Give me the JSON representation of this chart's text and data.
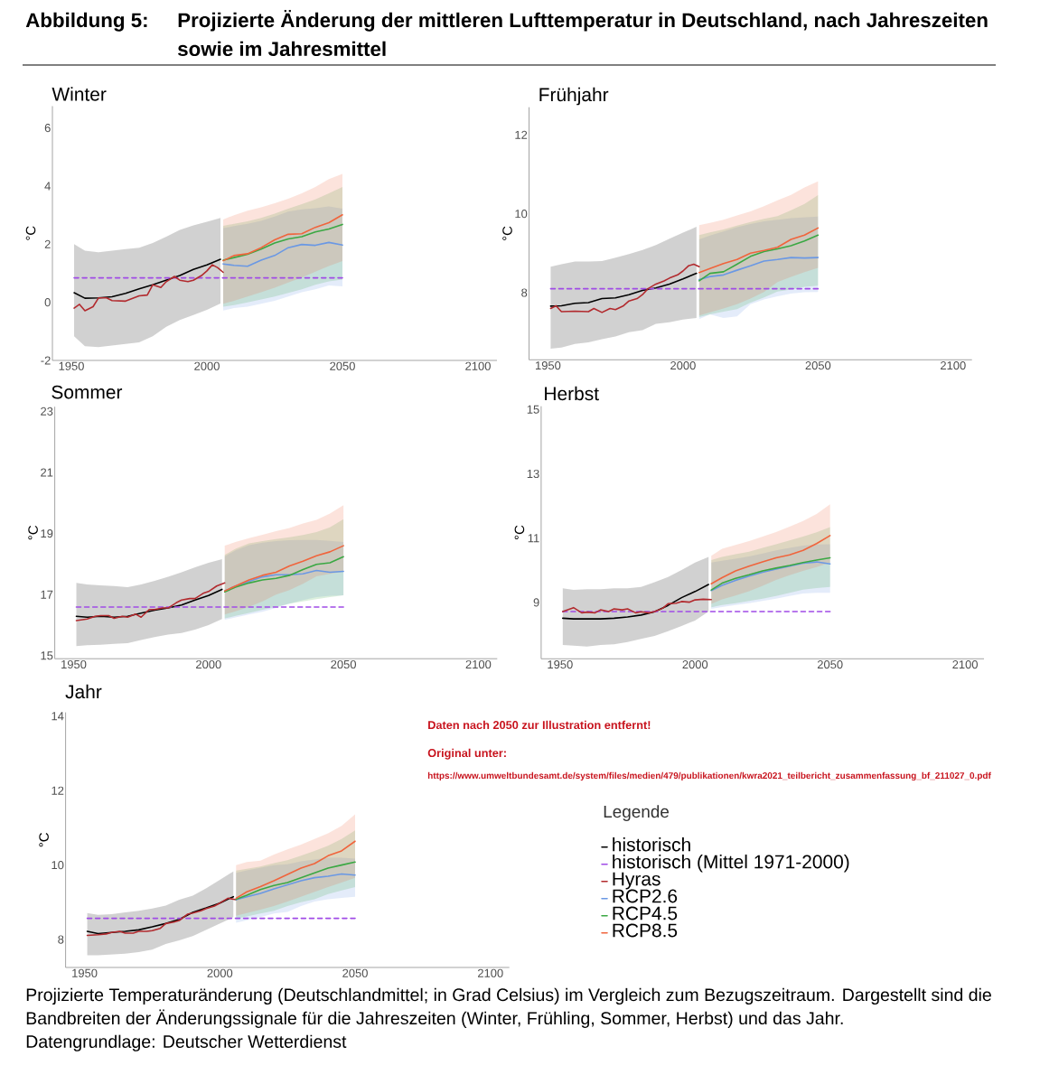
{
  "chart_data": [
    {
      "type": "line",
      "title": "Winter",
      "ylabel": "°C",
      "annotations": [
        "Abbildung 5:",
        "Projizierte Änderung der mittleren Lufttemperatur in Deutschland, nach Jahreszeiten sowie im Jahresmittel"
      ],
      "xlim": [
        1943,
        2107
      ],
      "xticks": [
        1950,
        2000,
        2050,
        2100
      ],
      "ylim": [
        -2,
        6.75
      ],
      "yticks": [
        -2,
        0,
        2,
        4,
        6
      ],
      "series": [
        {
          "color": "#000000",
          "x": [
            1951,
            1955,
            1960,
            1965,
            1970,
            1975,
            1980,
            1985,
            1990,
            1995,
            2000,
            2005
          ],
          "values": [
            0.33,
            0.14,
            0.15,
            0.19,
            0.31,
            0.46,
            0.6,
            0.76,
            0.92,
            1.13,
            1.29,
            1.48
          ],
          "lower": [
            -1.17,
            -1.51,
            -1.54,
            -1.49,
            -1.43,
            -1.38,
            -1.17,
            -0.84,
            -0.61,
            -0.44,
            -0.26,
            -0.04
          ],
          "upper": [
            2.0,
            1.78,
            1.72,
            1.78,
            1.83,
            1.88,
            2.04,
            2.26,
            2.49,
            2.65,
            2.77,
            2.9
          ]
        },
        {
          "color": "#a04be6",
          "line_style": "dashed",
          "x": [
            1951,
            2050
          ],
          "values": [
            0.84,
            0.84
          ]
        },
        {
          "color": "#b22a2e",
          "x": [
            1951,
            1953,
            1955,
            1958,
            1960,
            1963,
            1965,
            1970,
            1975,
            1978,
            1980,
            1983,
            1985,
            1988,
            1990,
            1993,
            1995,
            1998,
            2000,
            2002,
            2004,
            2006
          ],
          "values": [
            -0.2,
            -0.07,
            -0.29,
            -0.15,
            0.15,
            0.15,
            0.06,
            0.04,
            0.22,
            0.25,
            0.6,
            0.51,
            0.71,
            0.89,
            0.76,
            0.71,
            0.76,
            0.92,
            1.08,
            1.29,
            1.19,
            1.03
          ]
        },
        {
          "color": "#6a98e4",
          "x": [
            2006,
            2010,
            2015,
            2020,
            2025,
            2030,
            2035,
            2040,
            2045,
            2050
          ],
          "values": [
            1.32,
            1.27,
            1.24,
            1.45,
            1.61,
            1.88,
            1.99,
            1.96,
            2.06,
            1.97
          ],
          "lower": [
            -0.28,
            -0.2,
            -0.15,
            -0.05,
            0.05,
            0.2,
            0.35,
            0.45,
            0.58,
            0.55
          ],
          "upper": [
            2.55,
            2.62,
            2.7,
            2.8,
            2.95,
            3.12,
            3.2,
            3.24,
            3.3,
            3.22
          ]
        },
        {
          "color": "#3aa843",
          "x": [
            2006,
            2010,
            2015,
            2020,
            2025,
            2030,
            2035,
            2040,
            2045,
            2050
          ],
          "values": [
            1.45,
            1.54,
            1.65,
            1.83,
            2.04,
            2.18,
            2.26,
            2.42,
            2.52,
            2.68
          ],
          "lower": [
            -0.15,
            -0.1,
            0.0,
            0.1,
            0.2,
            0.32,
            0.45,
            0.6,
            0.72,
            0.78
          ],
          "upper": [
            2.63,
            2.7,
            2.79,
            2.9,
            3.05,
            3.22,
            3.38,
            3.54,
            3.75,
            3.97
          ]
        },
        {
          "color": "#f0643c",
          "x": [
            2006,
            2010,
            2015,
            2020,
            2025,
            2030,
            2035,
            2040,
            2045,
            2050
          ],
          "values": [
            1.43,
            1.61,
            1.67,
            1.88,
            2.15,
            2.34,
            2.36,
            2.58,
            2.74,
            3.01
          ],
          "lower": [
            -0.05,
            0.05,
            0.2,
            0.35,
            0.5,
            0.68,
            0.85,
            1.05,
            1.25,
            1.42
          ],
          "upper": [
            2.85,
            3.0,
            3.15,
            3.27,
            3.41,
            3.56,
            3.75,
            3.97,
            4.24,
            4.42
          ]
        }
      ]
    },
    {
      "type": "line",
      "title": "Frühjahr",
      "ylabel": "°C",
      "xlim": [
        1943,
        2107
      ],
      "xticks": [
        1950,
        2000,
        2050,
        2100
      ],
      "ylim": [
        6.3,
        12.7
      ],
      "yticks": [
        8,
        10,
        12
      ],
      "series": [
        {
          "color": "#000000",
          "x": [
            1951,
            1955,
            1960,
            1965,
            1970,
            1975,
            1980,
            1985,
            1990,
            1995,
            2000,
            2005
          ],
          "values": [
            7.66,
            7.67,
            7.73,
            7.75,
            7.85,
            7.87,
            7.95,
            8.06,
            8.12,
            8.22,
            8.35,
            8.49
          ],
          "lower": [
            6.58,
            6.61,
            6.7,
            6.74,
            6.82,
            6.89,
            7.0,
            7.05,
            7.21,
            7.25,
            7.32,
            7.36
          ],
          "upper": [
            8.66,
            8.72,
            8.79,
            8.79,
            8.8,
            8.89,
            8.98,
            9.08,
            9.21,
            9.37,
            9.52,
            9.67
          ]
        },
        {
          "color": "#a04be6",
          "line_style": "dashed",
          "x": [
            1951,
            2050
          ],
          "values": [
            8.1,
            8.1
          ]
        },
        {
          "color": "#b22a2e",
          "x": [
            1951,
            1953,
            1955,
            1960,
            1965,
            1967,
            1970,
            1973,
            1975,
            1978,
            1980,
            1983,
            1985,
            1987,
            1990,
            1993,
            1995,
            1998,
            2000,
            2002,
            2004,
            2006
          ],
          "values": [
            7.6,
            7.67,
            7.52,
            7.53,
            7.52,
            7.6,
            7.5,
            7.6,
            7.57,
            7.67,
            7.79,
            7.85,
            7.95,
            8.1,
            8.22,
            8.3,
            8.37,
            8.45,
            8.55,
            8.68,
            8.72,
            8.66
          ]
        },
        {
          "color": "#6a98e4",
          "x": [
            2006,
            2010,
            2015,
            2020,
            2025,
            2030,
            2035,
            2040,
            2045,
            2050
          ],
          "values": [
            8.33,
            8.41,
            8.45,
            8.57,
            8.68,
            8.8,
            8.84,
            8.89,
            8.88,
            8.89
          ],
          "lower": [
            7.33,
            7.45,
            7.36,
            7.4,
            7.71,
            7.83,
            7.91,
            7.98,
            8.01,
            8.02
          ],
          "upper": [
            9.35,
            9.45,
            9.55,
            9.66,
            9.74,
            9.81,
            9.85,
            9.89,
            9.91,
            9.93
          ]
        },
        {
          "color": "#3aa843",
          "x": [
            2006,
            2010,
            2015,
            2020,
            2025,
            2030,
            2035,
            2040,
            2045,
            2050
          ],
          "values": [
            8.3,
            8.49,
            8.53,
            8.72,
            8.92,
            9.04,
            9.11,
            9.19,
            9.31,
            9.46
          ],
          "lower": [
            7.38,
            7.45,
            7.52,
            7.58,
            7.75,
            7.88,
            8.03,
            8.08,
            8.15,
            8.18
          ],
          "upper": [
            9.46,
            9.53,
            9.6,
            9.7,
            9.79,
            9.87,
            9.94,
            10.09,
            10.25,
            10.47
          ]
        },
        {
          "color": "#f0643c",
          "x": [
            2006,
            2010,
            2015,
            2020,
            2025,
            2030,
            2035,
            2040,
            2045,
            2050
          ],
          "values": [
            8.51,
            8.61,
            8.74,
            8.84,
            9.0,
            9.07,
            9.15,
            9.35,
            9.46,
            9.64
          ],
          "lower": [
            7.42,
            7.5,
            7.6,
            7.71,
            7.85,
            8.02,
            8.27,
            8.4,
            8.52,
            8.63
          ],
          "upper": [
            9.71,
            9.77,
            9.85,
            9.96,
            10.06,
            10.19,
            10.34,
            10.48,
            10.67,
            10.82
          ]
        }
      ]
    },
    {
      "type": "line",
      "title": "Sommer",
      "ylabel": "°C",
      "xlim": [
        1943,
        2107
      ],
      "xticks": [
        1950,
        2000,
        2050,
        2100
      ],
      "ylim": [
        14.9,
        23.15
      ],
      "yticks": [
        15,
        17,
        19,
        21,
        23
      ],
      "series": [
        {
          "color": "#000000",
          "x": [
            1951,
            1955,
            1960,
            1965,
            1970,
            1975,
            1980,
            1985,
            1990,
            1995,
            2000,
            2005
          ],
          "values": [
            16.29,
            16.26,
            16.29,
            16.26,
            16.29,
            16.39,
            16.49,
            16.56,
            16.66,
            16.82,
            16.97,
            17.17
          ],
          "lower": [
            15.31,
            15.34,
            15.36,
            15.39,
            15.41,
            15.51,
            15.61,
            15.69,
            15.74,
            15.85,
            16.0,
            16.2
          ],
          "upper": [
            17.38,
            17.33,
            17.3,
            17.28,
            17.24,
            17.33,
            17.45,
            17.58,
            17.73,
            17.89,
            18.04,
            18.16
          ]
        },
        {
          "color": "#a04be6",
          "line_style": "dashed",
          "x": [
            1951,
            2050
          ],
          "values": [
            16.59,
            16.59
          ]
        },
        {
          "color": "#b22a2e",
          "x": [
            1951,
            1955,
            1958,
            1960,
            1963,
            1965,
            1968,
            1970,
            1973,
            1975,
            1978,
            1980,
            1983,
            1985,
            1988,
            1990,
            1993,
            1995,
            1998,
            2000,
            2003,
            2006
          ],
          "values": [
            16.15,
            16.2,
            16.29,
            16.31,
            16.31,
            16.22,
            16.29,
            16.26,
            16.36,
            16.26,
            16.51,
            16.51,
            16.56,
            16.56,
            16.73,
            16.82,
            16.87,
            16.87,
            17.04,
            17.1,
            17.28,
            17.38
          ]
        },
        {
          "color": "#6a98e4",
          "x": [
            2006,
            2010,
            2015,
            2020,
            2025,
            2030,
            2035,
            2040,
            2045,
            2050
          ],
          "values": [
            17.12,
            17.28,
            17.43,
            17.58,
            17.65,
            17.65,
            17.68,
            17.79,
            17.73,
            17.76
          ],
          "lower": [
            16.18,
            16.25,
            16.35,
            16.44,
            16.56,
            16.7,
            16.82,
            16.92,
            16.96,
            16.98
          ],
          "upper": [
            18.25,
            18.45,
            18.62,
            18.7,
            18.75,
            18.78,
            18.79,
            18.79,
            18.76,
            18.72
          ]
        },
        {
          "color": "#3aa843",
          "x": [
            2006,
            2010,
            2015,
            2020,
            2025,
            2030,
            2035,
            2040,
            2045,
            2050
          ],
          "values": [
            17.09,
            17.24,
            17.38,
            17.48,
            17.53,
            17.63,
            17.82,
            17.99,
            18.04,
            18.24
          ],
          "lower": [
            16.22,
            16.3,
            16.4,
            16.5,
            16.6,
            16.7,
            16.78,
            16.85,
            16.92,
            16.98
          ],
          "upper": [
            18.3,
            18.5,
            18.68,
            18.75,
            18.82,
            18.88,
            18.95,
            19.05,
            19.2,
            19.47
          ]
        },
        {
          "color": "#f0643c",
          "x": [
            2006,
            2010,
            2015,
            2020,
            2025,
            2030,
            2035,
            2040,
            2045,
            2050
          ],
          "values": [
            17.12,
            17.28,
            17.48,
            17.63,
            17.73,
            17.94,
            18.09,
            18.27,
            18.4,
            18.6
          ],
          "lower": [
            16.35,
            16.45,
            16.6,
            16.78,
            17.0,
            17.15,
            17.35,
            17.6,
            17.68,
            17.75
          ],
          "upper": [
            18.6,
            18.72,
            18.85,
            18.96,
            19.08,
            19.18,
            19.33,
            19.45,
            19.65,
            19.93
          ]
        }
      ]
    },
    {
      "type": "line",
      "title": "Herbst",
      "ylabel": "°C",
      "xlim": [
        1943,
        2107
      ],
      "xticks": [
        1950,
        2000,
        2050,
        2100
      ],
      "ylim": [
        7.25,
        15.1
      ],
      "yticks": [
        9,
        11,
        13,
        15
      ],
      "series": [
        {
          "color": "#000000",
          "x": [
            1951,
            1955,
            1960,
            1965,
            1970,
            1975,
            1980,
            1985,
            1990,
            1995,
            2000,
            2005
          ],
          "values": [
            8.51,
            8.49,
            8.49,
            8.49,
            8.51,
            8.55,
            8.61,
            8.71,
            8.91,
            9.15,
            9.34,
            9.56
          ],
          "lower": [
            7.68,
            7.66,
            7.63,
            7.68,
            7.7,
            7.77,
            7.87,
            7.96,
            8.11,
            8.27,
            8.44,
            8.72
          ],
          "upper": [
            9.44,
            9.39,
            9.41,
            9.41,
            9.44,
            9.44,
            9.48,
            9.63,
            9.79,
            10.01,
            10.24,
            10.42
          ]
        },
        {
          "color": "#a04be6",
          "line_style": "dashed",
          "x": [
            1951,
            2050
          ],
          "values": [
            8.72,
            8.72
          ]
        },
        {
          "color": "#b22a2e",
          "x": [
            1951,
            1955,
            1958,
            1960,
            1963,
            1965,
            1968,
            1970,
            1973,
            1975,
            1978,
            1980,
            1983,
            1985,
            1988,
            1990,
            1993,
            1995,
            1998,
            2000,
            2003,
            2006
          ],
          "values": [
            8.72,
            8.84,
            8.68,
            8.7,
            8.68,
            8.77,
            8.72,
            8.8,
            8.77,
            8.8,
            8.68,
            8.71,
            8.68,
            8.72,
            8.82,
            8.96,
            8.98,
            9.03,
            9.01,
            9.08,
            9.1,
            9.09
          ]
        },
        {
          "color": "#6a98e4",
          "x": [
            2006,
            2010,
            2015,
            2020,
            2025,
            2030,
            2035,
            2040,
            2045,
            2050
          ],
          "values": [
            9.37,
            9.53,
            9.69,
            9.82,
            9.94,
            10.04,
            10.13,
            10.22,
            10.26,
            10.2
          ],
          "lower": [
            8.8,
            8.86,
            8.92,
            8.98,
            9.05,
            9.12,
            9.2,
            9.28,
            9.3,
            9.3
          ],
          "upper": [
            10.24,
            10.3,
            10.36,
            10.43,
            10.52,
            10.62,
            10.7,
            10.77,
            10.8,
            10.81
          ]
        },
        {
          "color": "#3aa843",
          "x": [
            2006,
            2010,
            2015,
            2020,
            2025,
            2030,
            2035,
            2040,
            2045,
            2050
          ],
          "values": [
            9.39,
            9.6,
            9.75,
            9.86,
            9.98,
            10.07,
            10.15,
            10.24,
            10.32,
            10.39
          ],
          "lower": [
            8.85,
            8.92,
            8.98,
            9.05,
            9.12,
            9.2,
            9.3,
            9.4,
            9.45,
            9.48
          ],
          "upper": [
            10.32,
            10.42,
            10.5,
            10.58,
            10.7,
            10.81,
            10.93,
            11.05,
            11.18,
            11.34
          ]
        },
        {
          "color": "#f0643c",
          "x": [
            2006,
            2010,
            2015,
            2020,
            2025,
            2030,
            2035,
            2040,
            2045,
            2050
          ],
          "values": [
            9.58,
            9.77,
            9.98,
            10.13,
            10.26,
            10.39,
            10.48,
            10.62,
            10.83,
            11.08
          ],
          "lower": [
            8.96,
            9.1,
            9.22,
            9.35,
            9.52,
            9.7,
            9.85,
            9.98,
            10.1,
            10.24
          ],
          "upper": [
            10.45,
            10.67,
            10.79,
            10.91,
            11.05,
            11.19,
            11.36,
            11.53,
            11.75,
            12.05
          ]
        }
      ]
    },
    {
      "type": "line",
      "title": "Jahr",
      "ylabel": "°C",
      "legend": "right",
      "legend_title": "Legende",
      "annotations": [
        "Daten nach 2050 zur Illustration entfernt!",
        "Original unter:",
        "https://www.umweltbundesamt.de/system/files/medien/479/publikationen/kwra2021_teilbericht_zusammenfassung_bf_211027_0.pdf",
        "Projizierte Temperaturänderung (Deutschlandmittel; in Grad Celsius) im Vergleich zum Bezugszeitraum. Dargestellt sind die Bandbreiten der Änderungssignale für die Jahreszeiten (Winter, Frühling, Sommer, Herbst) und das Jahr.",
        "Datengrundlage: Deutscher Wetterdienst"
      ],
      "xlim": [
        1943,
        2107
      ],
      "xticks": [
        1950,
        2000,
        2050,
        2100
      ],
      "ylim": [
        7.25,
        14.1
      ],
      "yticks": [
        8,
        10,
        12,
        14
      ],
      "series": [
        {
          "name": "historisch",
          "color": "#000000",
          "x": [
            1951,
            1955,
            1960,
            1965,
            1970,
            1975,
            1980,
            1985,
            1990,
            1995,
            2000,
            2005
          ],
          "values": [
            8.22,
            8.16,
            8.19,
            8.22,
            8.26,
            8.34,
            8.43,
            8.54,
            8.73,
            8.85,
            8.98,
            9.15
          ],
          "lower": [
            7.58,
            7.58,
            7.6,
            7.62,
            7.66,
            7.73,
            7.88,
            7.98,
            8.09,
            8.26,
            8.43,
            8.6
          ],
          "upper": [
            8.71,
            8.66,
            8.68,
            8.73,
            8.77,
            8.83,
            8.91,
            9.07,
            9.18,
            9.38,
            9.6,
            9.83
          ]
        },
        {
          "name": "historisch (Mittel 1971-2000)",
          "color": "#a04be6",
          "line_style": "dashed",
          "x": [
            1951,
            2050
          ],
          "values": [
            8.57,
            8.57
          ]
        },
        {
          "name": "Hyras",
          "color": "#b22a2e",
          "x": [
            1951,
            1955,
            1958,
            1960,
            1963,
            1965,
            1968,
            1970,
            1973,
            1975,
            1978,
            1980,
            1983,
            1985,
            1988,
            1990,
            1993,
            1995,
            1998,
            2000,
            2003,
            2006
          ],
          "values": [
            8.11,
            8.13,
            8.15,
            8.19,
            8.22,
            8.17,
            8.17,
            8.22,
            8.22,
            8.24,
            8.3,
            8.43,
            8.47,
            8.51,
            8.68,
            8.71,
            8.77,
            8.83,
            8.9,
            8.98,
            9.11,
            9.07
          ]
        },
        {
          "name": "RCP2.6",
          "color": "#6a98e4",
          "x": [
            2006,
            2010,
            2015,
            2020,
            2025,
            2030,
            2035,
            2040,
            2045,
            2050
          ],
          "values": [
            9.07,
            9.15,
            9.24,
            9.36,
            9.47,
            9.58,
            9.66,
            9.7,
            9.76,
            9.73
          ],
          "lower": [
            8.45,
            8.52,
            8.6,
            8.7,
            8.74,
            8.9,
            9.02,
            9.08,
            9.12,
            9.15
          ],
          "upper": [
            9.79,
            9.86,
            9.93,
            10.0,
            10.02,
            10.1,
            10.15,
            10.2,
            10.2,
            10.17
          ]
        },
        {
          "name": "RCP4.5",
          "color": "#3aa843",
          "x": [
            2006,
            2010,
            2015,
            2020,
            2025,
            2030,
            2035,
            2040,
            2045,
            2050
          ],
          "values": [
            9.08,
            9.19,
            9.34,
            9.45,
            9.53,
            9.66,
            9.79,
            9.92,
            10.0,
            10.08
          ],
          "lower": [
            8.56,
            8.62,
            8.7,
            8.77,
            8.9,
            9.0,
            9.08,
            9.22,
            9.32,
            9.41
          ],
          "upper": [
            9.85,
            9.9,
            9.96,
            10.05,
            10.13,
            10.25,
            10.38,
            10.52,
            10.7,
            10.93
          ]
        },
        {
          "name": "RCP8.5",
          "color": "#f0643c",
          "x": [
            2006,
            2010,
            2015,
            2020,
            2025,
            2030,
            2035,
            2040,
            2045,
            2050
          ],
          "values": [
            9.11,
            9.28,
            9.42,
            9.58,
            9.75,
            9.92,
            10.04,
            10.25,
            10.38,
            10.64
          ],
          "lower": [
            8.64,
            8.71,
            8.8,
            8.9,
            9.02,
            9.15,
            9.28,
            9.41,
            9.53,
            9.66
          ],
          "upper": [
            10.0,
            10.08,
            10.12,
            10.28,
            10.42,
            10.55,
            10.7,
            10.85,
            11.05,
            11.36
          ]
        }
      ]
    }
  ]
}
